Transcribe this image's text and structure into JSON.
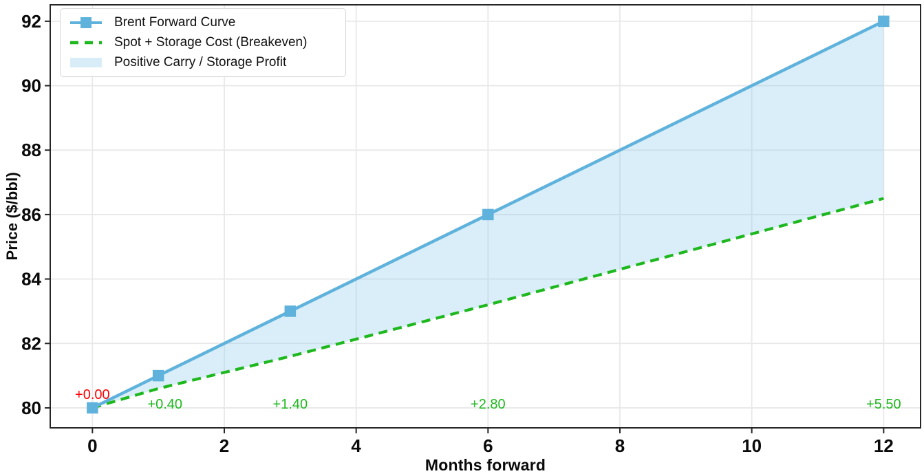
{
  "figure": {
    "background": "#ffffff"
  },
  "legend": {
    "items": [
      {
        "label": "Brent Forward Curve",
        "type": "line-marker",
        "color": "#5fb2dc"
      },
      {
        "label": "Spot + Storage Cost (Breakeven)",
        "type": "dashed",
        "color": "#1eb81e"
      },
      {
        "label": "Positive Carry / Storage Profit",
        "type": "patch",
        "color": "#d9edf8"
      }
    ]
  },
  "chart_data": {
    "type": "line",
    "title": "",
    "xlabel": "Months forward",
    "ylabel": "Price ($/bbl)",
    "x": [
      0,
      1,
      3,
      6,
      12
    ],
    "series": [
      {
        "name": "Brent Forward Curve",
        "values": [
          80,
          81,
          83,
          86,
          92
        ],
        "color": "#5fb2dc",
        "style": "solid",
        "marker": "square"
      },
      {
        "name": "Spot + Storage Cost (Breakeven)",
        "values": [
          80,
          80.6,
          81.6,
          83.2,
          86.5
        ],
        "color": "#1eb81e",
        "style": "dashed",
        "marker": "none"
      }
    ],
    "fill_between": {
      "label": "Positive Carry / Storage Profit",
      "color": "#89caeb",
      "opacity": 0.32
    },
    "annotations": [
      {
        "text": "+0.00",
        "x": 0.0,
        "y": 80.41,
        "color": "#ff0000"
      },
      {
        "text": "+0.40",
        "x": 1.1,
        "y": 80.11,
        "color": "#1eb81e"
      },
      {
        "text": "+1.40",
        "x": 3.0,
        "y": 80.11,
        "color": "#1eb81e"
      },
      {
        "text": "+2.80",
        "x": 6.0,
        "y": 80.11,
        "color": "#1eb81e"
      },
      {
        "text": "+5.50",
        "x": 12.0,
        "y": 80.11,
        "color": "#1eb81e"
      }
    ],
    "xticks": [
      0,
      2,
      4,
      6,
      8,
      10,
      12
    ],
    "yticks": [
      80,
      82,
      84,
      86,
      88,
      90,
      92
    ],
    "xlim": [
      -0.64,
      12.56
    ],
    "ylim": [
      79.38,
      92.51
    ],
    "grid": true,
    "grid_color": "#e8e8e8",
    "spine_color": "#262626",
    "text_color": "#0a0a0a",
    "legend_position": "upper-left"
  }
}
